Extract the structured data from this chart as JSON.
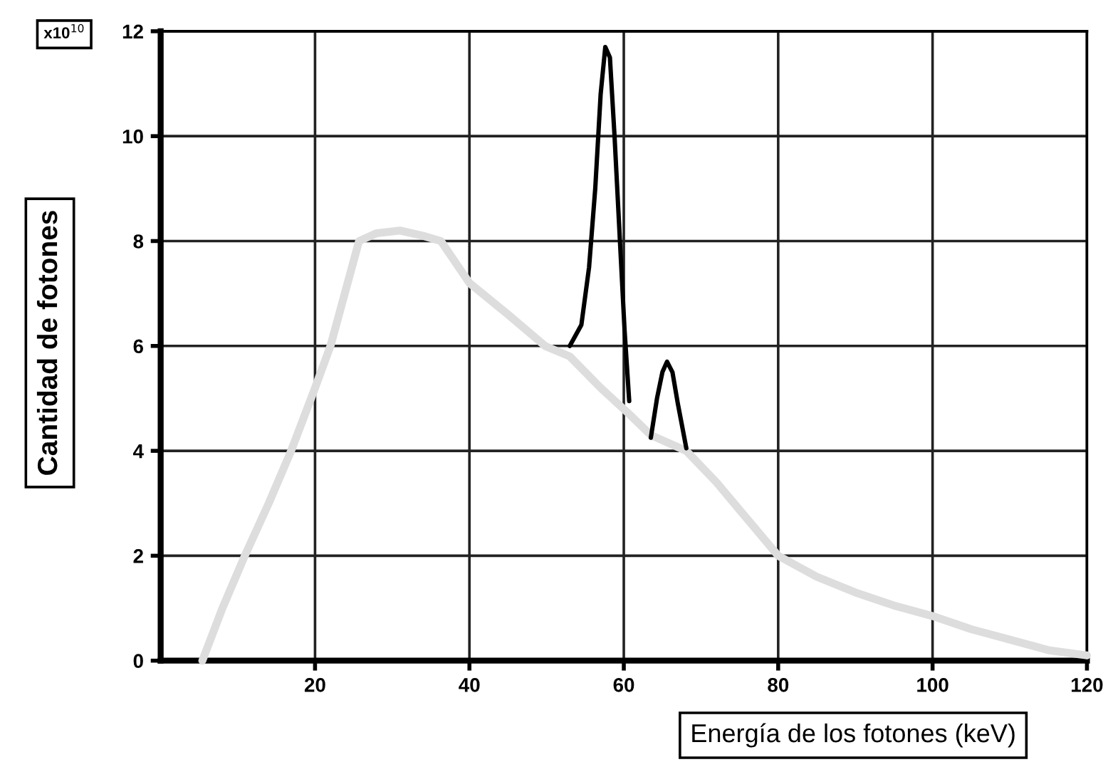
{
  "chart_data": {
    "type": "line",
    "xlabel": "Energía de los fotones (keV)",
    "ylabel": "Cantidad de fotones",
    "annotations": [
      "x10$^{10}$"
    ],
    "xlim": [
      0,
      120
    ],
    "ylim": [
      0,
      12
    ],
    "xticks": [
      20,
      40,
      60,
      80,
      100,
      120
    ],
    "yticks": [
      0,
      2,
      4,
      6,
      8,
      10,
      12
    ],
    "grid": true,
    "marker": "none",
    "line_style": "solid",
    "series": [
      {
        "color": "#dddddd",
        "x": [
          5.4,
          8,
          10.9,
          14,
          16.9,
          20,
          22,
          25.7,
          28,
          31,
          34,
          36.3,
          40,
          45,
          49.8,
          53,
          57,
          60.7,
          63.5,
          68.1,
          72,
          76,
          80,
          85,
          90,
          95,
          100,
          105,
          110,
          115,
          120
        ],
        "values": [
          0,
          1,
          2,
          3,
          4,
          5.2,
          6,
          8,
          8.15,
          8.2,
          8.1,
          8,
          7.2,
          6.6,
          6,
          5.8,
          5.2,
          4.7,
          4.3,
          4,
          3.4,
          2.7,
          2,
          1.6,
          1.3,
          1.05,
          0.85,
          0.6,
          0.4,
          0.2,
          0.1
        ]
      },
      {
        "color": "#000000",
        "x": [
          53,
          54.5,
          55.5,
          56.3,
          57,
          57.6,
          58.2,
          58.8,
          59.5,
          60.1,
          60.7,
          62,
          63.5,
          64.3,
          65,
          65.6,
          66.3,
          67,
          68.1
        ],
        "values": [
          6,
          6.4,
          7.5,
          9,
          10.8,
          11.7,
          11.5,
          10,
          8,
          6.3,
          4.95,
          null,
          4.25,
          5,
          5.5,
          5.7,
          5.5,
          4.9,
          4.05
        ]
      }
    ]
  }
}
